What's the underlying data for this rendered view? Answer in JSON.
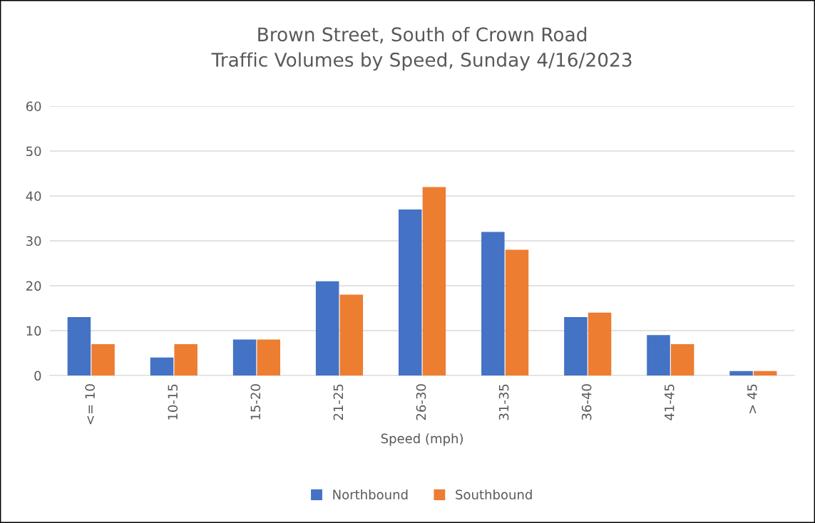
{
  "chart_data": {
    "type": "bar",
    "title": "Brown Street, South of Crown Road\nTraffic Volumes by Speed, Sunday 4/16/2023",
    "xlabel": "Speed (mph)",
    "categories": [
      "<= 10",
      "10-15",
      "15-20",
      "21-25",
      "26-30",
      "31-35",
      "36-40",
      "41-45",
      "> 45"
    ],
    "series": [
      {
        "name": "Northbound",
        "color": "#4472c4",
        "values": [
          13,
          4,
          8,
          21,
          37,
          32,
          13,
          9,
          1
        ]
      },
      {
        "name": "Southbound",
        "color": "#ed7d31",
        "values": [
          7,
          7,
          8,
          18,
          42,
          28,
          14,
          7,
          1
        ]
      }
    ],
    "ylim": [
      0,
      60
    ],
    "yticks": [
      0,
      10,
      20,
      30,
      40,
      50,
      60
    ],
    "grid": "y",
    "legend": "bottom"
  }
}
